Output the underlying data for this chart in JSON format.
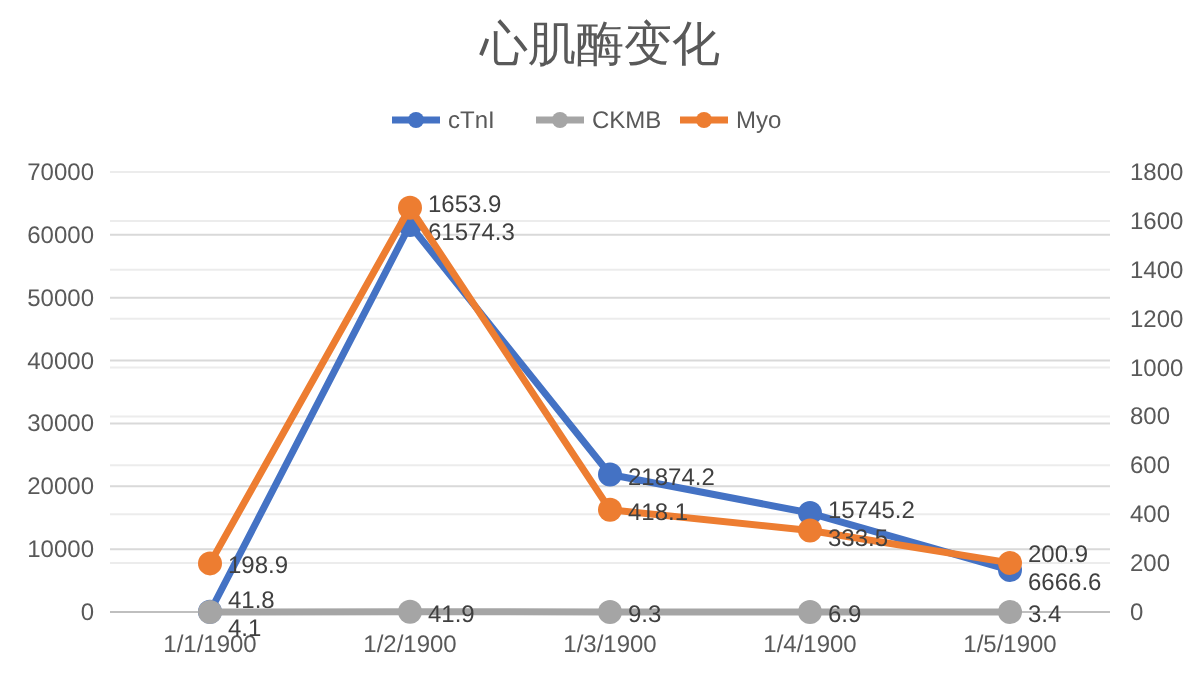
{
  "chart_data": {
    "type": "line",
    "title": "心肌酶变化",
    "categories": [
      "1/1/1900",
      "1/2/1900",
      "1/3/1900",
      "1/4/1900",
      "1/5/1900"
    ],
    "series": [
      {
        "name": "cTnI",
        "color": "#4472c4",
        "values": [
          41.8,
          61574.3,
          21874.2,
          15745.2,
          6666.6
        ]
      },
      {
        "name": "CKMB",
        "color": "#a5a5a5",
        "values": [
          4.1,
          41.9,
          9.3,
          6.9,
          3.4
        ]
      },
      {
        "name": "Myo",
        "color": "#ed7d31",
        "axis": "y2",
        "values": [
          198.9,
          1653.9,
          418.1,
          333.5,
          200.9
        ]
      }
    ],
    "ylim": [
      0,
      70000
    ],
    "yticks": [
      0,
      10000,
      20000,
      30000,
      40000,
      50000,
      60000,
      70000
    ],
    "y2lim": [
      0,
      1800
    ],
    "y2ticks": [
      0,
      200,
      400,
      600,
      800,
      1000,
      1200,
      1400,
      1600,
      1800
    ],
    "grid": true,
    "legend": "top",
    "marker": "circle",
    "line_style": "solid",
    "data_labels": true
  }
}
